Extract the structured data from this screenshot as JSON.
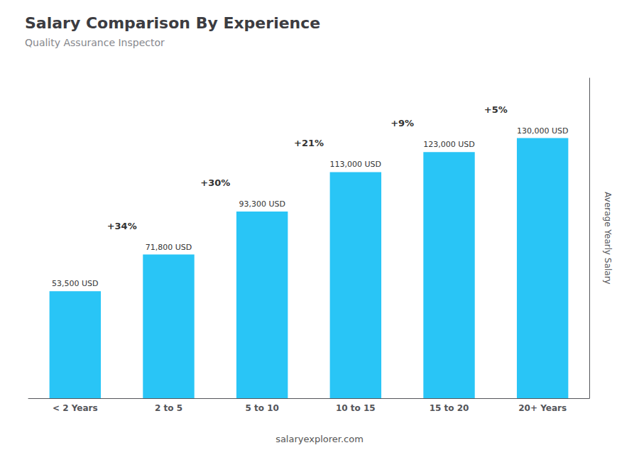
{
  "chart_data": {
    "type": "bar",
    "title": "Salary Comparison By Experience",
    "subtitle": "Quality Assurance Inspector",
    "categories": [
      "< 2 Years",
      "2 to 5",
      "5 to 10",
      "10 to 15",
      "15 to 20",
      "20+ Years"
    ],
    "values": [
      53500,
      71800,
      93300,
      113000,
      123000,
      130000
    ],
    "value_labels": [
      "53,500 USD",
      "71,800 USD",
      "93,300 USD",
      "113,000 USD",
      "123,000 USD",
      "130,000 USD"
    ],
    "data_labels": true,
    "color": "#29c5f6",
    "ylabel": "Average Yearly Salary",
    "ylim": [
      0,
      160000
    ],
    "tick_labels": "x",
    "grid": false,
    "annotations": [
      "+34%",
      "+30%",
      "+21%",
      "+9%",
      "+5%"
    ],
    "watermark": "salaryexplorer.com"
  }
}
